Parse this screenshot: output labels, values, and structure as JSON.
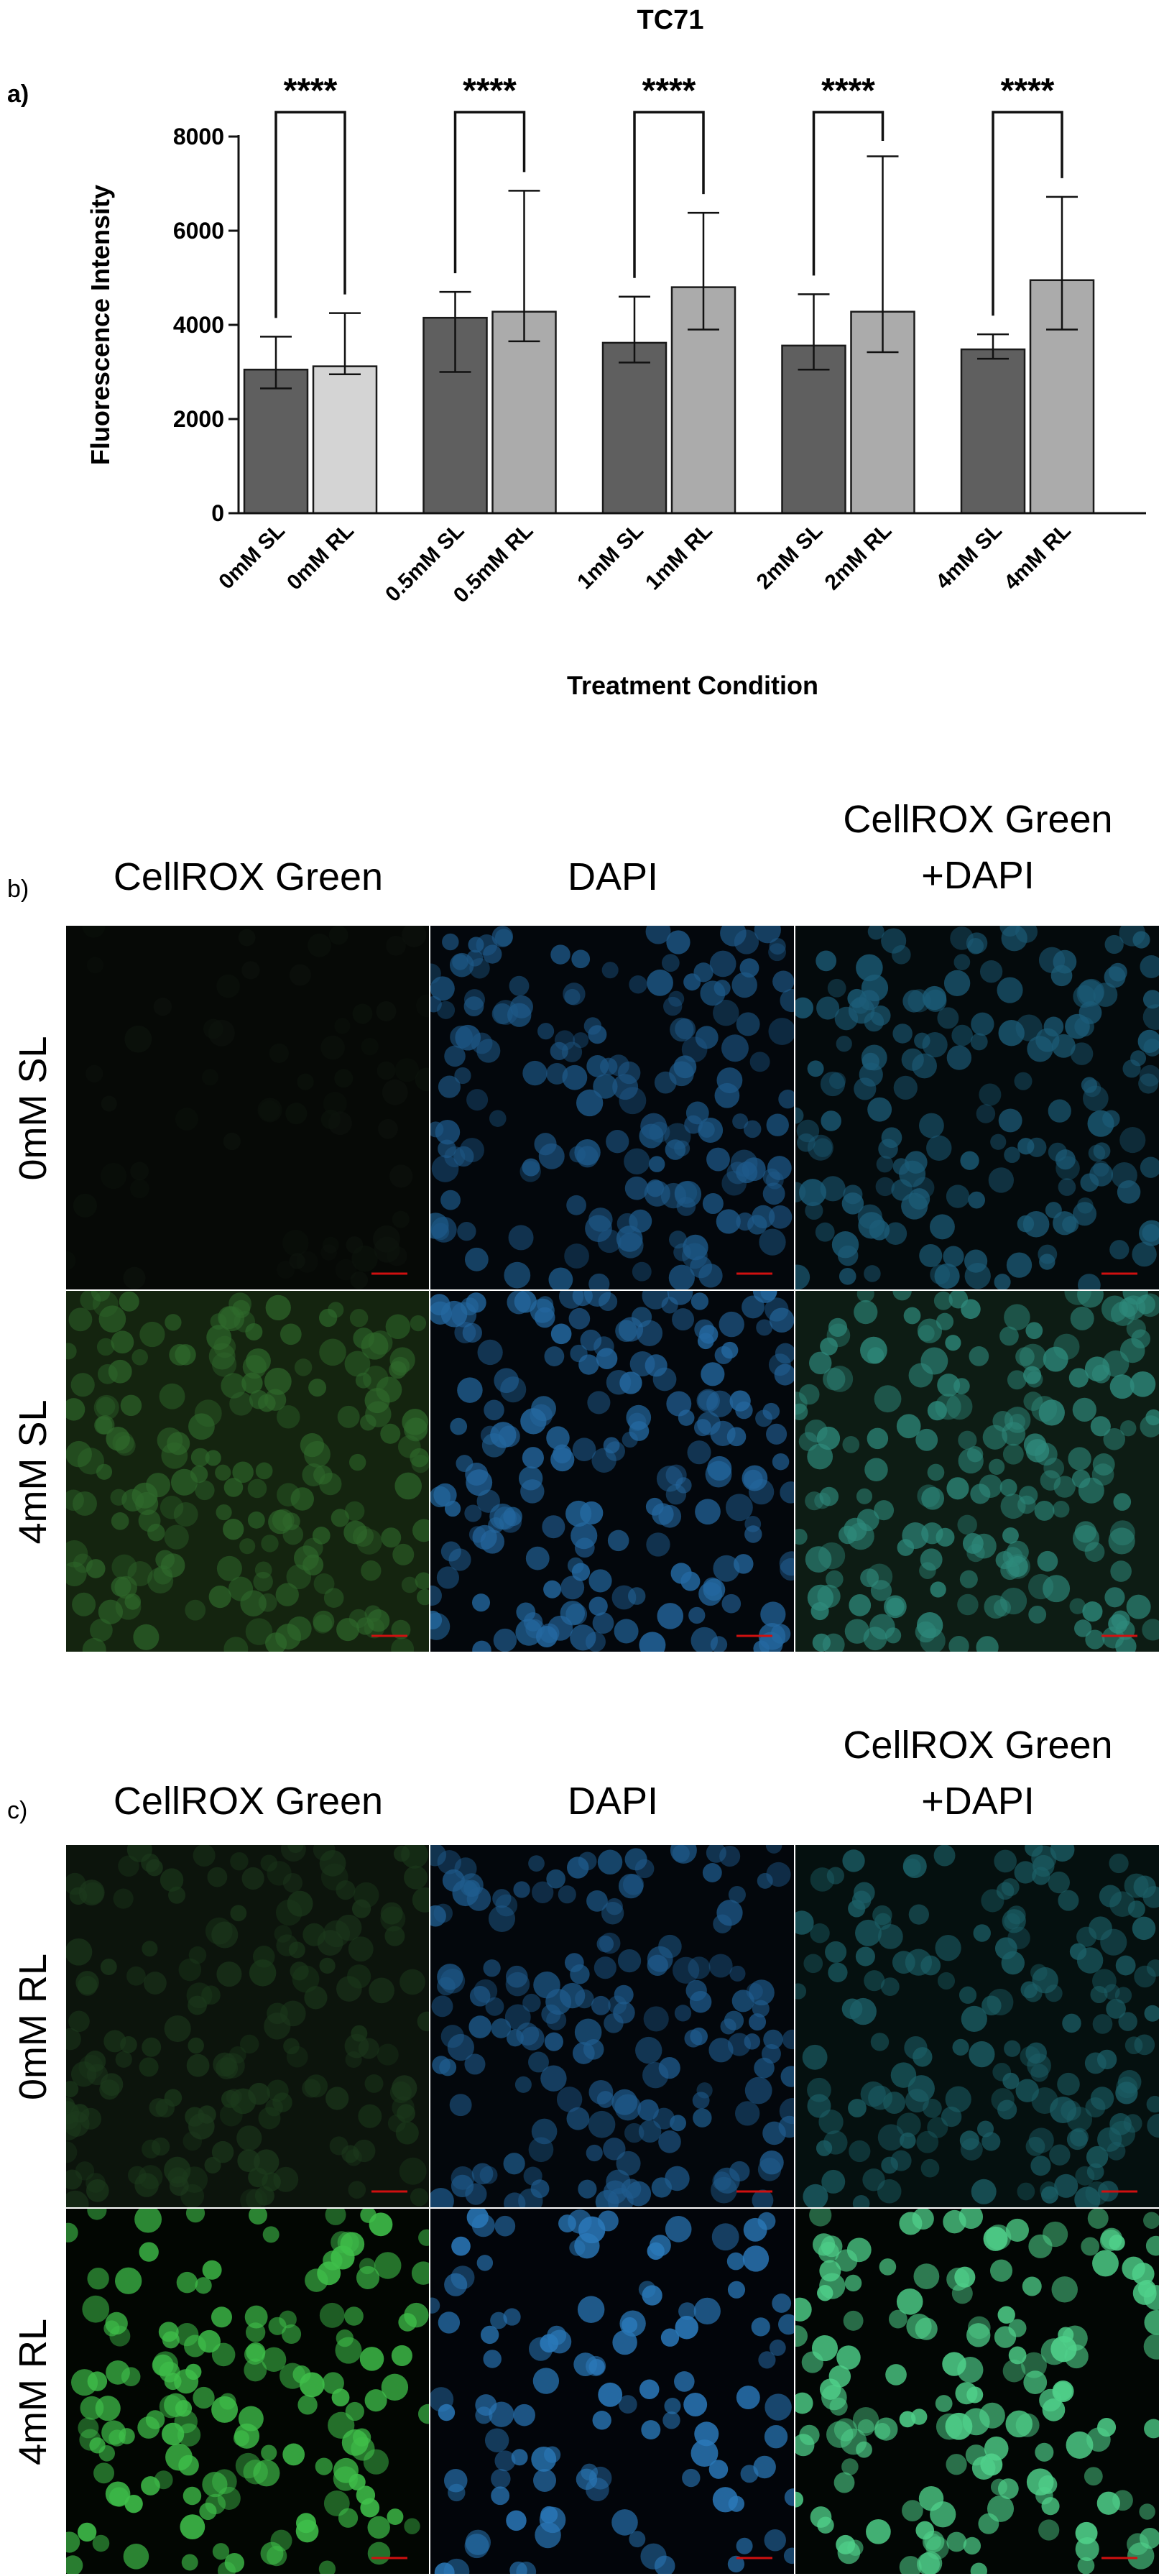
{
  "chart_data": {
    "type": "bar",
    "panel_label": "a)",
    "title": "TC71",
    "x_label": "Treatment Condition",
    "y_label": "Fluorescence Intensity",
    "categories": [
      "0mM SL",
      "0mM RL",
      "0.5mM SL",
      "0.5mM RL",
      "1mM SL",
      "1mM RL",
      "2mM SL",
      "2mM RL",
      "4mM SL",
      "4mM RL"
    ],
    "values": [
      3050,
      3120,
      4150,
      4280,
      3620,
      4800,
      3560,
      4280,
      3480,
      4950
    ],
    "whisker_low": [
      2650,
      2950,
      3000,
      3650,
      3200,
      3900,
      3050,
      3420,
      3280,
      3900
    ],
    "whisker_high": [
      3750,
      4250,
      4700,
      6850,
      4600,
      6380,
      4650,
      7580,
      3800,
      6720
    ],
    "colors": [
      "#5f5f5f",
      "#d4d4d4",
      "#5f5f5f",
      "#ababab",
      "#5f5f5f",
      "#ababab",
      "#5f5f5f",
      "#ababab",
      "#5f5f5f",
      "#ababab"
    ],
    "ylim": [
      0,
      8000
    ],
    "yticks": [
      0,
      2000,
      4000,
      6000,
      8000
    ],
    "annotations": [
      {
        "text": "****",
        "pair": [
          0,
          1
        ]
      },
      {
        "text": "****",
        "pair": [
          2,
          3
        ]
      },
      {
        "text": "****",
        "pair": [
          4,
          5
        ]
      },
      {
        "text": "****",
        "pair": [
          6,
          7
        ]
      },
      {
        "text": "****",
        "pair": [
          8,
          9
        ]
      }
    ]
  },
  "panels": [
    {
      "label": "b)",
      "columns": [
        [
          "CellROX Green"
        ],
        [
          "DAPI"
        ],
        [
          "CellROX Green",
          "+DAPI"
        ]
      ],
      "rows": [
        "0mM SL",
        "4mM SL"
      ]
    },
    {
      "label": "c)",
      "columns": [
        [
          "CellROX Green"
        ],
        [
          "DAPI"
        ],
        [
          "CellROX Green",
          "+DAPI"
        ]
      ],
      "rows": [
        "0mM RL",
        "4mM RL"
      ]
    }
  ]
}
